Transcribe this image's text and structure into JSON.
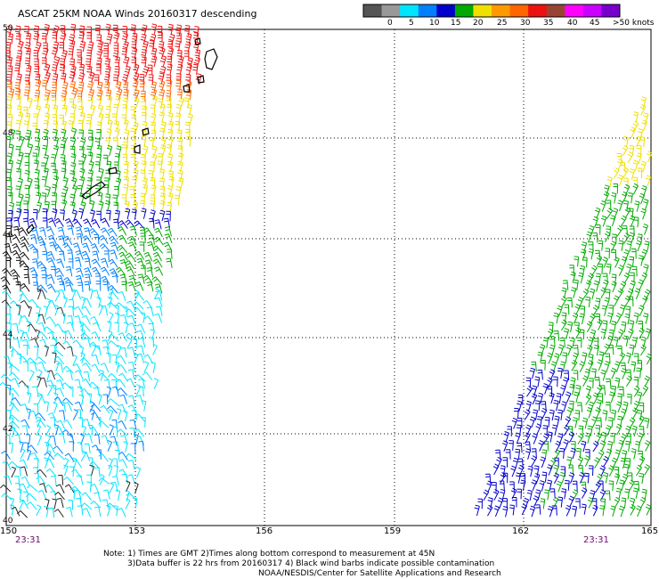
{
  "title": "ASCAT 25KM NOAA Winds 20160317 descending",
  "legend": {
    "colors": [
      "#555555",
      "#999999",
      "#00e5ff",
      "#0080ff",
      "#0000cc",
      "#00aa00",
      "#f0e000",
      "#ff9900",
      "#ff6600",
      "#ee1111",
      "#994433",
      "#ff00ff",
      "#cc00ff",
      "#7700cc"
    ],
    "labels": [
      "0",
      "5",
      "10",
      "15",
      "20",
      "25",
      "30",
      "35",
      "40",
      "45",
      ">50 knots"
    ]
  },
  "map": {
    "lat_labels": [
      "50",
      "48",
      "46",
      "44",
      "42",
      "40"
    ],
    "lon_labels": [
      "150",
      "153",
      "156",
      "159",
      "162",
      "165"
    ],
    "time_labels": [
      "23:31",
      "23:31"
    ]
  },
  "notes": {
    "line1": "Note: 1) Times are GMT 2)Times along bottom correspond to measurement at 45N",
    "line2": "3)Data buffer is 22 hrs from 20160317 4) Black wind barbs indicate possible contamination",
    "line3": "NOAA/NESDIS/Center for Satellite Applications and Research"
  }
}
